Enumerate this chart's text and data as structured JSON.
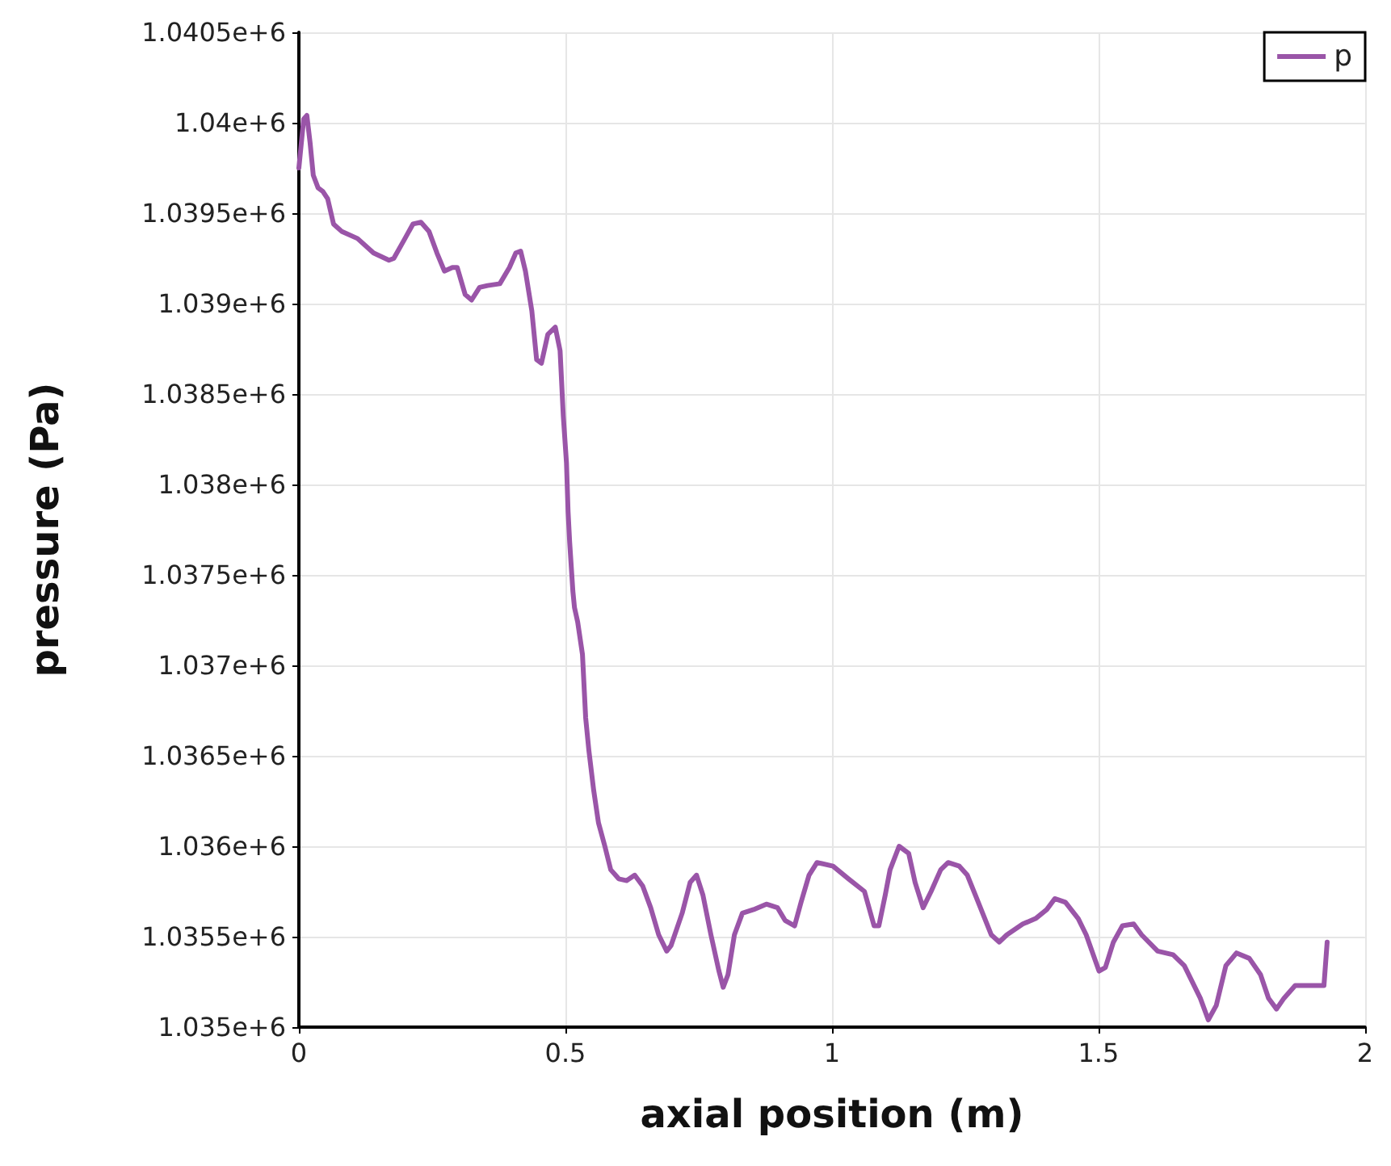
{
  "chart_data": {
    "type": "line",
    "xlabel": "axial position (m)",
    "ylabel": "pressure (Pa)",
    "xlim": [
      0,
      2
    ],
    "xticks": [
      0,
      0.5,
      1,
      1.5,
      2
    ],
    "ylim": [
      1035000,
      1040500
    ],
    "yticks": [
      {
        "value": 1035000,
        "label": "1.035e+6"
      },
      {
        "value": 1035500,
        "label": "1.0355e+6"
      },
      {
        "value": 1036000,
        "label": "1.036e+6"
      },
      {
        "value": 1036500,
        "label": "1.0365e+6"
      },
      {
        "value": 1037000,
        "label": "1.037e+6"
      },
      {
        "value": 1037500,
        "label": "1.0375e+6"
      },
      {
        "value": 1038000,
        "label": "1.038e+6"
      },
      {
        "value": 1038500,
        "label": "1.0385e+6"
      },
      {
        "value": 1039000,
        "label": "1.039e+6"
      },
      {
        "value": 1039500,
        "label": "1.0395e+6"
      },
      {
        "value": 1040000,
        "label": "1.04e+6"
      },
      {
        "value": 1040500,
        "label": "1.0405e+6"
      }
    ],
    "grid": true,
    "legend": "top right",
    "marker": "none",
    "line_style": "solid",
    "x": [
      0,
      0.009,
      0.015,
      0.021,
      0.027,
      0.036,
      0.045,
      0.054,
      0.065,
      0.08,
      0.11,
      0.14,
      0.169,
      0.178,
      0.199,
      0.214,
      0.229,
      0.244,
      0.259,
      0.273,
      0.288,
      0.297,
      0.312,
      0.324,
      0.339,
      0.354,
      0.377,
      0.395,
      0.407,
      0.416,
      0.425,
      0.437,
      0.446,
      0.455,
      0.467,
      0.481,
      0.49,
      0.496,
      0.502,
      0.505,
      0.508,
      0.514,
      0.517,
      0.523,
      0.532,
      0.538,
      0.544,
      0.553,
      0.562,
      0.574,
      0.585,
      0.6,
      0.615,
      0.63,
      0.645,
      0.66,
      0.675,
      0.69,
      0.698,
      0.719,
      0.734,
      0.746,
      0.758,
      0.773,
      0.788,
      0.796,
      0.805,
      0.817,
      0.832,
      0.853,
      0.877,
      0.898,
      0.912,
      0.93,
      0.942,
      0.957,
      0.972,
      1.002,
      1.031,
      1.061,
      1.079,
      1.088,
      1.1,
      1.109,
      1.126,
      1.144,
      1.156,
      1.171,
      1.186,
      1.204,
      1.218,
      1.239,
      1.254,
      1.269,
      1.299,
      1.314,
      1.328,
      1.358,
      1.382,
      1.403,
      1.418,
      1.438,
      1.462,
      1.477,
      1.501,
      1.513,
      1.528,
      1.545,
      1.566,
      1.581,
      1.611,
      1.64,
      1.661,
      1.691,
      1.706,
      1.721,
      1.739,
      1.759,
      1.783,
      1.804,
      1.819,
      1.834,
      1.848,
      1.869,
      1.908,
      1.923,
      1.929
    ],
    "series": [
      {
        "name": "p",
        "color": "#9a55a8",
        "values": [
          1039750,
          1040020,
          1040040,
          1039890,
          1039710,
          1039640,
          1039620,
          1039580,
          1039440,
          1039400,
          1039360,
          1039280,
          1039240,
          1039250,
          1039360,
          1039440,
          1039450,
          1039400,
          1039280,
          1039180,
          1039200,
          1039200,
          1039050,
          1039020,
          1039090,
          1039100,
          1039110,
          1039200,
          1039280,
          1039290,
          1039180,
          1038960,
          1038690,
          1038670,
          1038830,
          1038870,
          1038740,
          1038380,
          1038120,
          1037850,
          1037680,
          1037410,
          1037320,
          1037240,
          1037060,
          1036710,
          1036530,
          1036310,
          1036130,
          1036000,
          1035870,
          1035820,
          1035810,
          1035840,
          1035780,
          1035660,
          1035510,
          1035420,
          1035450,
          1035630,
          1035800,
          1035840,
          1035730,
          1035510,
          1035310,
          1035220,
          1035290,
          1035510,
          1035630,
          1035650,
          1035680,
          1035660,
          1035590,
          1035560,
          1035690,
          1035840,
          1035910,
          1035890,
          1035820,
          1035750,
          1035560,
          1035560,
          1035730,
          1035870,
          1036000,
          1035960,
          1035800,
          1035660,
          1035750,
          1035870,
          1035910,
          1035890,
          1035840,
          1035730,
          1035510,
          1035470,
          1035510,
          1035570,
          1035600,
          1035650,
          1035710,
          1035690,
          1035600,
          1035510,
          1035310,
          1035330,
          1035470,
          1035560,
          1035570,
          1035510,
          1035420,
          1035400,
          1035340,
          1035160,
          1035040,
          1035120,
          1035340,
          1035410,
          1035380,
          1035290,
          1035160,
          1035100,
          1035160,
          1035230,
          1035230,
          1035230,
          1035470
        ]
      }
    ]
  }
}
